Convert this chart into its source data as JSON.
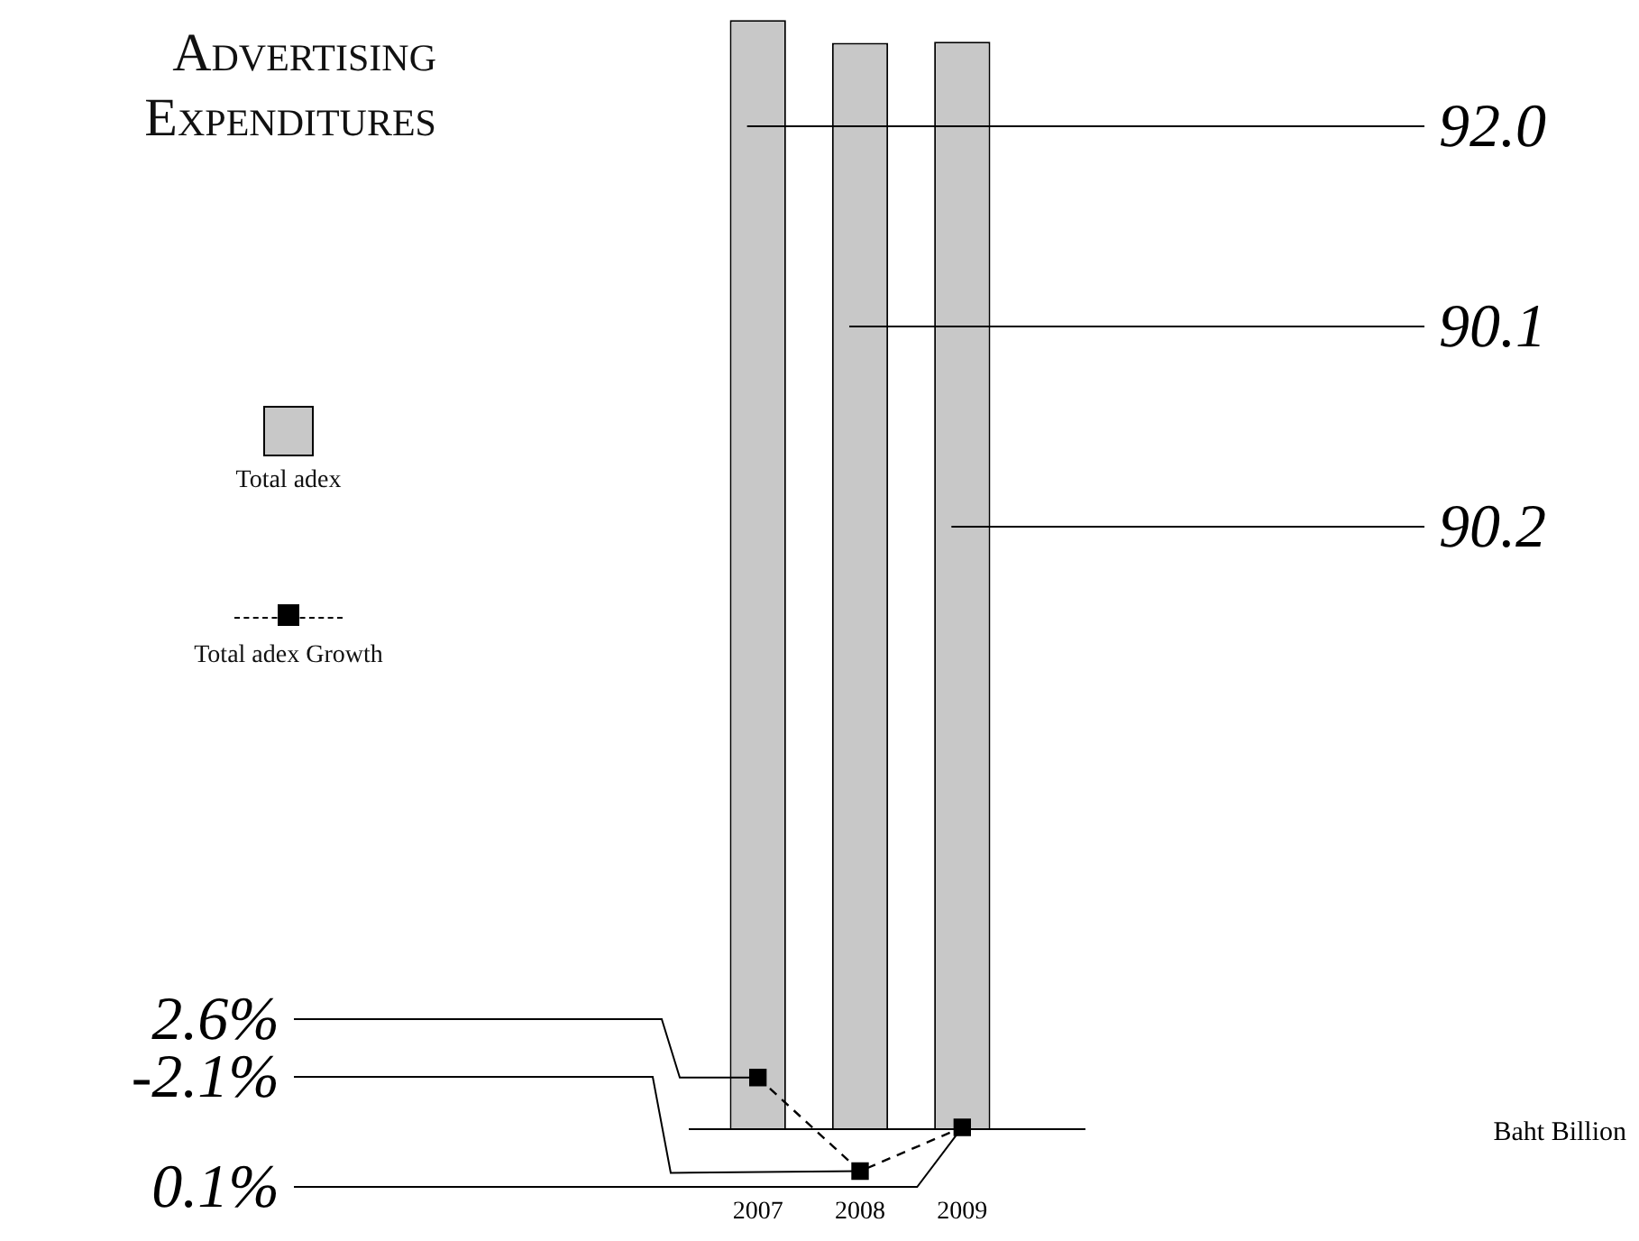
{
  "chart_data": {
    "type": "bar",
    "title": "Advertising Expenditures",
    "categories": [
      "2007",
      "2008",
      "2009"
    ],
    "series": [
      {
        "name": "Total adex",
        "color": "#c8c8c8",
        "values": [
          92.0,
          90.1,
          90.2
        ],
        "value_labels": [
          "92.0",
          "90.1",
          "90.2"
        ]
      },
      {
        "name": "Total adex Growth",
        "type": "line",
        "axis": "y2",
        "color": "#000000",
        "marker": "square",
        "line_style": "dashed",
        "values": [
          2.6,
          -2.1,
          0.1
        ],
        "value_labels": [
          "2.6%",
          "-2.1%",
          "0.1%"
        ]
      }
    ],
    "tick_labels": "x",
    "grid": false,
    "legend": "left",
    "annotations": [
      "Baht Billion"
    ]
  }
}
